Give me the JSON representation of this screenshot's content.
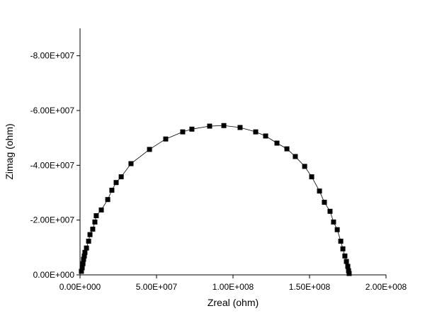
{
  "chart_data": {
    "type": "scatter",
    "x_label": "Zreal (ohm)",
    "y_label": "Zimag (ohm)",
    "xlim": [
      0,
      200000000
    ],
    "xticks": [
      {
        "value": 0,
        "label": "0.00E+000"
      },
      {
        "value": 50000000,
        "label": "5.00E+007"
      },
      {
        "value": 100000000,
        "label": "1.00E+008"
      },
      {
        "value": 150000000,
        "label": "1.50E+008"
      },
      {
        "value": 200000000,
        "label": "2.00E+008"
      }
    ],
    "ylim": [
      0,
      -90000000
    ],
    "yticks": [
      {
        "value": 0,
        "label": "0.00E+000"
      },
      {
        "value": -20000000,
        "label": "-2.00E+007"
      },
      {
        "value": -40000000,
        "label": "-4.00E+007"
      },
      {
        "value": -60000000,
        "label": "-6.00E+007"
      },
      {
        "value": -80000000,
        "label": "-8.00E+007"
      }
    ],
    "series": [
      {
        "color": "#000000",
        "x": [
          900000,
          1400000,
          1900000,
          2300000,
          2800000,
          3200000,
          4200000,
          5600000,
          6500000,
          8300000,
          9700000,
          10600000,
          13900000,
          18100000,
          20800000,
          23600000,
          26900000,
          33300000,
          45400000,
          56000000,
          67100000,
          73100000,
          84700000,
          94000000,
          104600000,
          114800000,
          121300000,
          128700000,
          135200000,
          140700000,
          146800000,
          151400000,
          156500000,
          159700000,
          163400000,
          165700000,
          168100000,
          170400000,
          171800000,
          173100000,
          174100000,
          175000000,
          175500000,
          175900000
        ],
        "values": [
          -1300000,
          -2600000,
          -4100000,
          -5700000,
          -6900000,
          -8200000,
          -9800000,
          -12300000,
          -14700000,
          -16700000,
          -19300000,
          -21600000,
          -23700000,
          -27500000,
          -30900000,
          -33700000,
          -35800000,
          -40600000,
          -45800000,
          -49600000,
          -52200000,
          -53200000,
          -54300000,
          -54500000,
          -53800000,
          -52200000,
          -50700000,
          -48100000,
          -46000000,
          -43200000,
          -39600000,
          -35800000,
          -30600000,
          -26500000,
          -23200000,
          -19300000,
          -16500000,
          -12300000,
          -9500000,
          -6900000,
          -4900000,
          -3100000,
          -1500000,
          -500000
        ]
      }
    ]
  }
}
